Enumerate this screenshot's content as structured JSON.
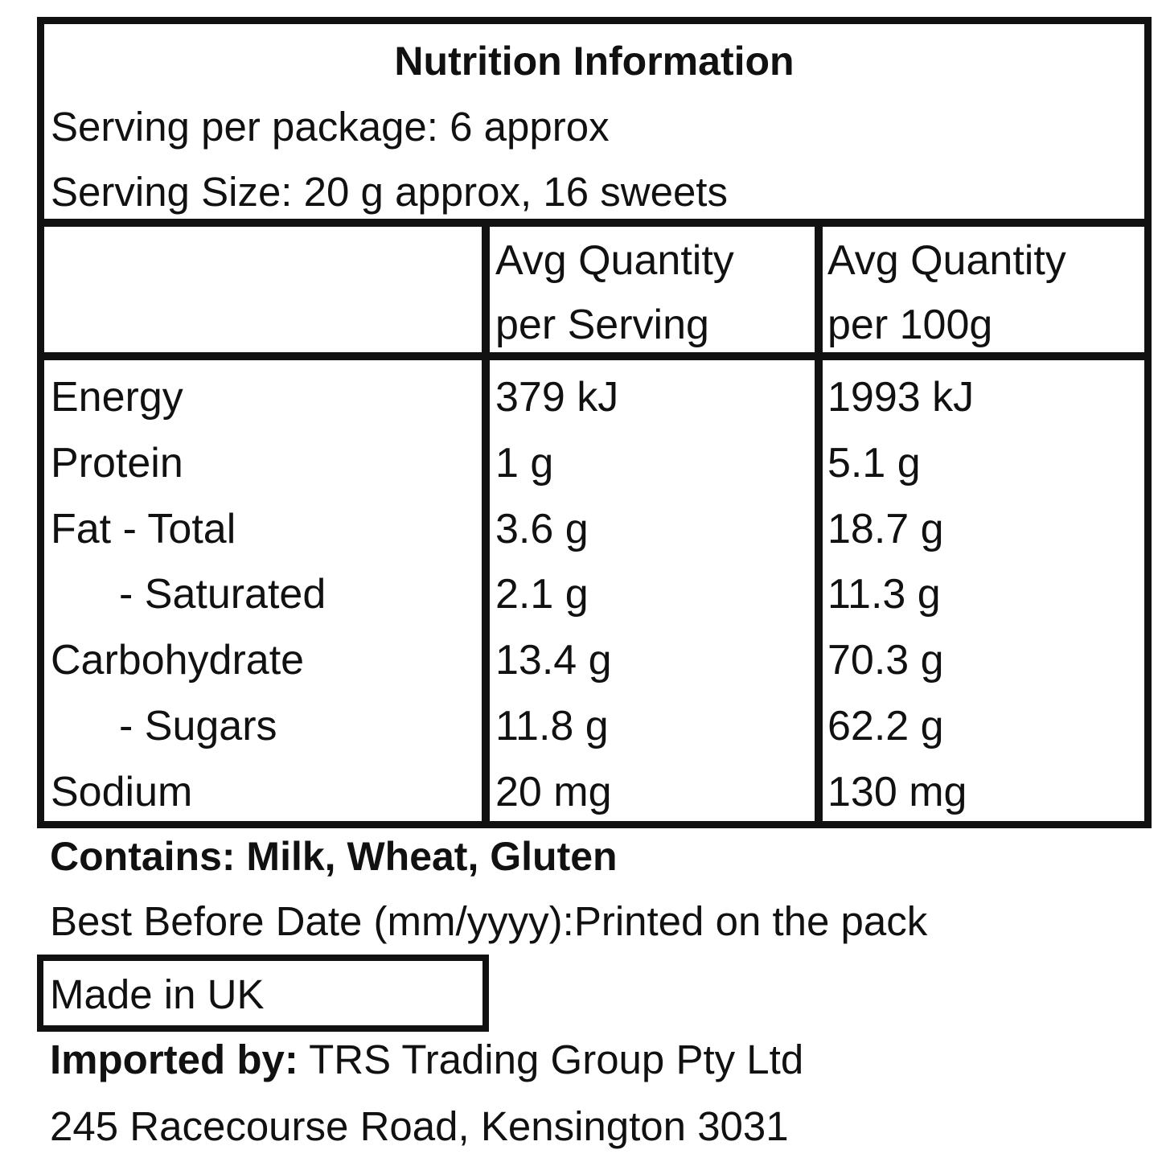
{
  "panel": {
    "title": "Nutrition Information",
    "servings_per_package": "Serving per package: 6 approx",
    "serving_size": "Serving Size: 20 g approx, 16 sweets"
  },
  "table": {
    "headers": [
      {
        "line1": "",
        "line2": ""
      },
      {
        "line1": "Avg Quantity",
        "line2": "per Serving"
      },
      {
        "line1": "Avg Quantity",
        "line2": "per 100g"
      }
    ],
    "rows": [
      {
        "label": "Energy",
        "per_serving": "379 kJ",
        "per_100g": "1993 kJ",
        "indent": false
      },
      {
        "label": "Protein",
        "per_serving": "1 g",
        "per_100g": "5.1 g",
        "indent": false
      },
      {
        "label": "Fat - Total",
        "per_serving": "3.6 g",
        "per_100g": "18.7 g",
        "indent": false
      },
      {
        "label": "- Saturated",
        "per_serving": "2.1 g",
        "per_100g": "11.3 g",
        "indent": true
      },
      {
        "label": "Carbohydrate",
        "per_serving": "13.4 g",
        "per_100g": "70.3 g",
        "indent": false
      },
      {
        "label": "- Sugars",
        "per_serving": "11.8 g",
        "per_100g": "62.2 g",
        "indent": true
      },
      {
        "label": "Sodium",
        "per_serving": "20 mg",
        "per_100g": "130 mg",
        "indent": false
      }
    ]
  },
  "footer": {
    "contains": "Contains: Milk, Wheat, Gluten",
    "best_before": "Best Before Date (mm/yyyy):Printed on the pack",
    "made_in": "Made in UK",
    "imported_label": "Imported by:",
    "imported_value": " TRS Trading Group Pty Ltd",
    "address": "245 Racecourse Road, Kensington 3031"
  }
}
